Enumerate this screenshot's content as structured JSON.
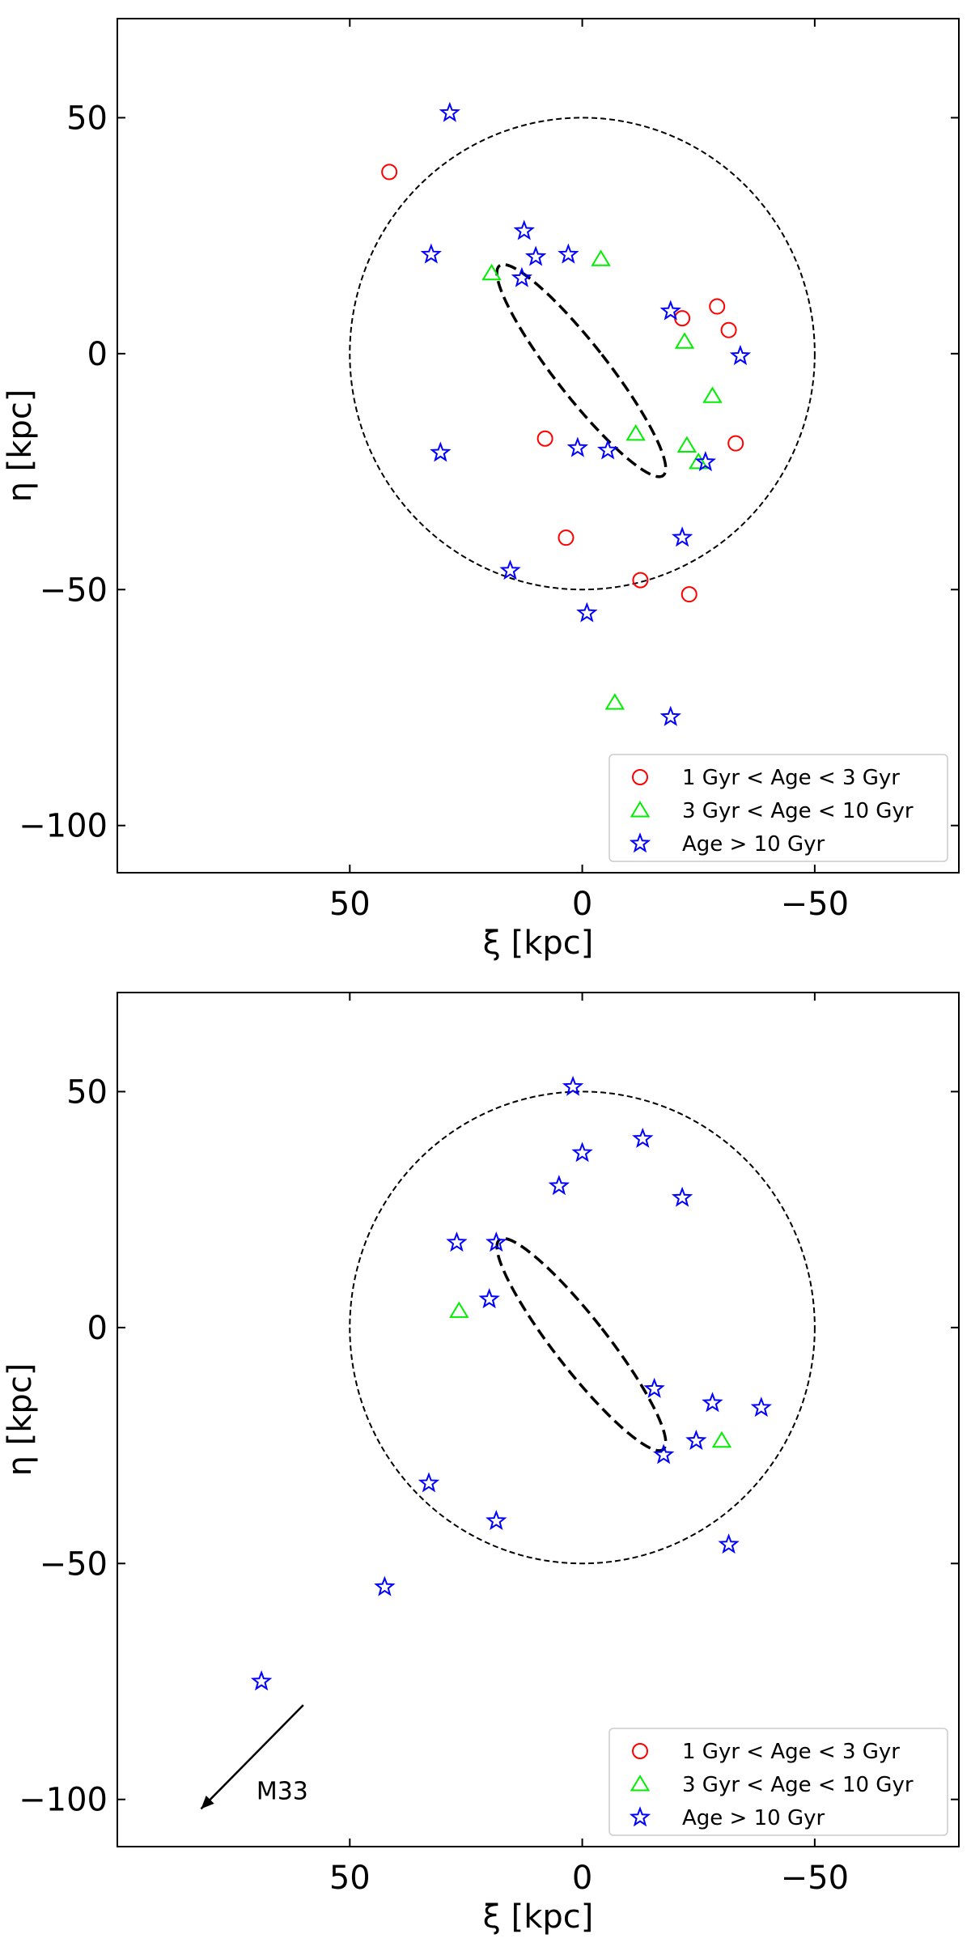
{
  "colors": {
    "young": "#ff0000",
    "mid": "#00ee00",
    "old": "#0000ff",
    "axis": "#000000"
  },
  "chart_data": [
    {
      "type": "scatter",
      "panel": "top",
      "xlabel": "ξ [kpc]",
      "ylabel": "η [kpc]",
      "xlim": [
        100,
        -81
      ],
      "ylim": [
        -110,
        71
      ],
      "xticks": [
        50,
        0,
        -50
      ],
      "xtick_labels": [
        "50",
        "0",
        "−50"
      ],
      "yticks": [
        50,
        0,
        -50,
        -100
      ],
      "ytick_labels": [
        "50",
        "0",
        "−50",
        "−100"
      ],
      "legend_position": "lower-right",
      "reference_circle": {
        "center": [
          0,
          0
        ],
        "radius": 50
      },
      "disk_ellipse": {
        "center": [
          0.2,
          -3.6
        ],
        "semi_major": 28.2,
        "semi_minor": 5.6,
        "angle_deg": 38
      },
      "series": [
        {
          "name": "1 Gyr < Age < 3 Gyr",
          "marker": "circle",
          "color": "#ff0000",
          "x": [
            41.5,
            -21.5,
            -29,
            -31.5,
            8,
            -33,
            3.5,
            -12.5,
            -23
          ],
          "y": [
            38.5,
            7.5,
            10,
            5,
            -18,
            -19,
            -39,
            -48,
            -51
          ]
        },
        {
          "name": "3 Gyr < Age < 10 Gyr",
          "marker": "triangle",
          "color": "#00ee00",
          "x": [
            19.5,
            -4,
            -22,
            -28,
            -11.5,
            -22.5,
            -25,
            -7
          ],
          "y": [
            17,
            20,
            2.5,
            -9,
            -17,
            -19.5,
            -23,
            -74
          ]
        },
        {
          "name": "Age > 10 Gyr",
          "marker": "star",
          "color": "#0000ff",
          "x": [
            28.5,
            12.5,
            32.5,
            10,
            3,
            13,
            -19,
            -34,
            30.5,
            1,
            -5.5,
            -26.5,
            -21.5,
            15.5,
            -1,
            -19
          ],
          "y": [
            51,
            26,
            21,
            20.5,
            21,
            16,
            9,
            -0.5,
            -21,
            -20,
            -20.5,
            -23,
            -39,
            -46,
            -55,
            -77
          ]
        }
      ]
    },
    {
      "type": "scatter",
      "panel": "bottom",
      "xlabel": "ξ [kpc]",
      "ylabel": "η [kpc]",
      "xlim": [
        100,
        -81
      ],
      "ylim": [
        -110,
        71
      ],
      "xticks": [
        50,
        0,
        -50
      ],
      "xtick_labels": [
        "50",
        "0",
        "−50"
      ],
      "yticks": [
        50,
        0,
        -50,
        -100
      ],
      "ytick_labels": [
        "50",
        "0",
        "−50",
        "−100"
      ],
      "legend_position": "lower-right",
      "reference_circle": {
        "center": [
          0,
          0
        ],
        "radius": 50
      },
      "disk_ellipse": {
        "center": [
          0.2,
          -3.6
        ],
        "semi_major": 28.2,
        "semi_minor": 5.6,
        "angle_deg": 38
      },
      "annotation": {
        "text": "M33",
        "arrow_from": [
          60,
          -80
        ],
        "arrow_to": [
          82,
          -102
        ]
      },
      "series": [
        {
          "name": "1 Gyr < Age < 3 Gyr",
          "marker": "circle",
          "color": "#ff0000",
          "x": [],
          "y": []
        },
        {
          "name": "3 Gyr < Age < 10 Gyr",
          "marker": "triangle",
          "color": "#00ee00",
          "x": [
            26.5,
            -30
          ],
          "y": [
            3.5,
            -24
          ]
        },
        {
          "name": "Age > 10 Gyr",
          "marker": "star",
          "color": "#0000ff",
          "x": [
            2,
            -13,
            0,
            5,
            -21.5,
            27,
            18.5,
            20,
            -15.5,
            -28,
            -38.5,
            -24.5,
            -17.5,
            33,
            18.5,
            -31.5,
            42.5,
            69
          ],
          "y": [
            51,
            40,
            37,
            30,
            27.5,
            18,
            18,
            6,
            -13,
            -16,
            -17,
            -24,
            -27,
            -33,
            -41,
            -46,
            -55,
            -75
          ]
        }
      ]
    }
  ]
}
